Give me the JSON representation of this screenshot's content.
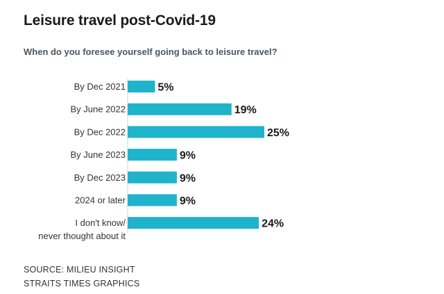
{
  "title": "Leisure travel post-Covid-19",
  "subtitle": "When do you foresee yourself going back to leisure travel?",
  "source": {
    "line1": "SOURCE: MILIEU INSIGHT",
    "line2": "STRAITS TIMES GRAPHICS"
  },
  "chart_data": {
    "type": "bar",
    "orientation": "horizontal",
    "title": "Leisure travel post-Covid-19",
    "subtitle": "When do you foresee yourself going back to leisure travel?",
    "categories": [
      [
        "By Dec 2021"
      ],
      [
        "By June 2022"
      ],
      [
        "By Dec 2022"
      ],
      [
        "By June 2023"
      ],
      [
        "By Dec 2023"
      ],
      [
        "2024 or later"
      ],
      [
        "I don't know/",
        "never thought about it"
      ]
    ],
    "values": [
      5,
      19,
      25,
      9,
      9,
      9,
      24
    ],
    "value_labels": [
      "5%",
      "19%",
      "25%",
      "9%",
      "9%",
      "9%",
      "24%"
    ],
    "unit": "%",
    "xlim": [
      0,
      25
    ],
    "grid": false,
    "legend": "none",
    "bar_color": "#1fb3cc"
  }
}
